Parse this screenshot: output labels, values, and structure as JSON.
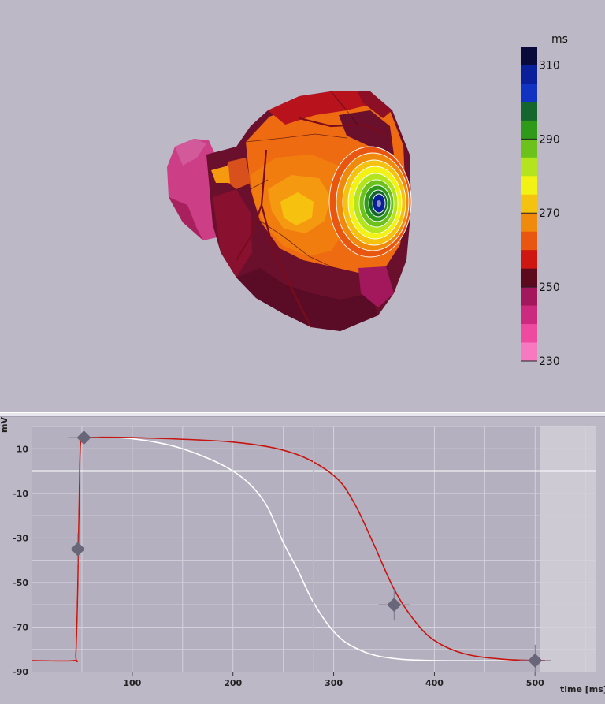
{
  "colorbar": {
    "unit": "ms",
    "tick_labels": [
      "310",
      "290",
      "270",
      "250",
      "230"
    ],
    "min": 230,
    "max": 315,
    "bands": [
      "#0a0a3a",
      "#0a1f9a",
      "#1233c2",
      "#15662e",
      "#2f9a1a",
      "#6cc21a",
      "#b4e41e",
      "#f2f214",
      "#f5c20f",
      "#f08a0c",
      "#e8560f",
      "#cf1712",
      "#5e0a1e",
      "#a3185c",
      "#cc2a7f",
      "#ee4aa0",
      "#f77ac0"
    ]
  },
  "plot": {
    "y_axis_label": "mV",
    "x_axis_label": "time [ms]",
    "x_ticks": [
      "100",
      "200",
      "300",
      "400",
      "500"
    ],
    "y_ticks": [
      "10",
      "-10",
      "-30",
      "-50",
      "-70",
      "-90"
    ],
    "colors": {
      "red_trace": "#c8140f",
      "white_trace": "#ffffff",
      "cursor": "#f5c000",
      "marker": "#6a6679"
    }
  },
  "chart_data": {
    "type": "line",
    "xlabel": "time [ms]",
    "ylabel": "mV",
    "xlim": [
      0,
      560
    ],
    "ylim": [
      -90,
      20
    ],
    "grid": true,
    "series": [
      {
        "x": [
          0,
          42,
          44,
          46,
          48,
          50,
          55,
          100,
          200,
          260,
          300,
          320,
          340,
          360,
          380,
          400,
          430,
          470,
          510
        ],
        "y": [
          -85,
          -85,
          -82,
          -50,
          5,
          14,
          15,
          15,
          13,
          8,
          -2,
          -14,
          -33,
          -53,
          -67,
          -76,
          -82,
          -84.5,
          -85
        ]
      },
      {
        "x": [
          0,
          42,
          44,
          46,
          48,
          50,
          55,
          100,
          150,
          200,
          230,
          250,
          265,
          280,
          300,
          320,
          350,
          400,
          510
        ],
        "y": [
          -85,
          -85,
          -82,
          -50,
          5,
          14,
          15,
          14.5,
          10,
          0,
          -13,
          -32,
          -45,
          -59,
          -72,
          -79,
          -83.5,
          -85,
          -85
        ]
      }
    ],
    "hline_y": 0,
    "cursor_x": 280,
    "markers": [
      {
        "x": 52,
        "y": 15
      },
      {
        "x": 46,
        "y": -35
      },
      {
        "x": 360,
        "y": -60
      },
      {
        "x": 500,
        "y": -85
      }
    ],
    "shaded_from_x": 505
  }
}
